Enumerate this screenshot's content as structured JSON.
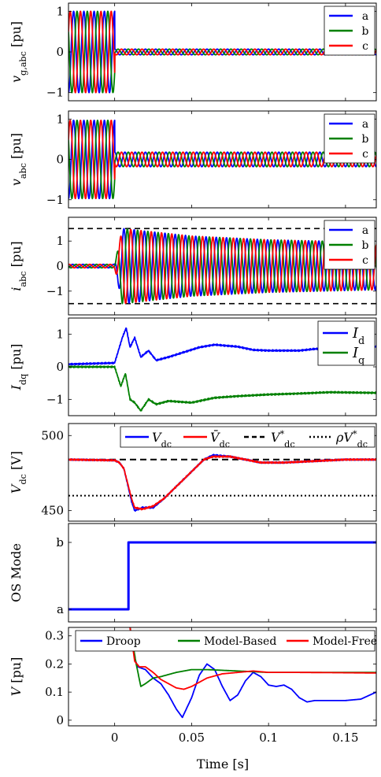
{
  "figure": {
    "xlabel": "Time [s]"
  },
  "colors": {
    "blue": "#0000ff",
    "green": "#008000",
    "red": "#ff0000",
    "black": "#000000"
  },
  "chart_data": [
    {
      "type": "line",
      "ylabel": "v_g,abc [pu]",
      "xlim": [
        -0.03,
        0.17
      ],
      "ylim": [
        -1.2,
        1.2
      ],
      "yticks": [
        -1,
        0,
        1
      ],
      "series": [
        {
          "name": "a",
          "color": "#0000ff",
          "phase": 0
        },
        {
          "name": "b",
          "color": "#008000",
          "phase": -120
        },
        {
          "name": "c",
          "color": "#ff0000",
          "phase": 120
        }
      ],
      "freq_hz": 150,
      "segments": [
        {
          "t_start": -0.03,
          "t_end": 0.0,
          "amplitude": 1.0
        },
        {
          "t_start": 0.0,
          "t_end": 0.17,
          "amplitude": 0.07
        }
      ],
      "legend": "top-right"
    },
    {
      "type": "line",
      "ylabel": "v_abc [pu]",
      "xlim": [
        -0.03,
        0.17
      ],
      "ylim": [
        -1.2,
        1.2
      ],
      "yticks": [
        -1,
        0,
        1
      ],
      "series": [
        {
          "name": "a",
          "color": "#0000ff",
          "phase": 0
        },
        {
          "name": "b",
          "color": "#008000",
          "phase": -120
        },
        {
          "name": "c",
          "color": "#ff0000",
          "phase": 120
        }
      ],
      "freq_hz": 150,
      "segments": [
        {
          "t_start": -0.03,
          "t_end": 0.0,
          "amplitude": 0.97
        },
        {
          "t_start": 0.0,
          "t_end": 0.17,
          "amplitude": 0.18
        }
      ],
      "legend": "top-right"
    },
    {
      "type": "line",
      "ylabel": "i_abc [pu]",
      "xlim": [
        -0.03,
        0.17
      ],
      "ylim": [
        -1.95,
        1.95
      ],
      "yticks": [
        -1,
        0,
        1
      ],
      "limits": [
        1.5,
        -1.5
      ],
      "series": [
        {
          "name": "a",
          "color": "#0000ff",
          "phase": 0
        },
        {
          "name": "b",
          "color": "#008000",
          "phase": -120
        },
        {
          "name": "c",
          "color": "#ff0000",
          "phase": 120
        }
      ],
      "freq_hz": 150,
      "envelope": [
        [
          -0.03,
          0.07
        ],
        [
          0.0,
          0.07
        ],
        [
          0.005,
          1.5
        ],
        [
          0.05,
          1.2
        ],
        [
          0.1,
          1.05
        ],
        [
          0.17,
          0.95
        ]
      ],
      "legend": "top-right"
    },
    {
      "type": "line",
      "ylabel": "I_dq [pu]",
      "xlim": [
        -0.03,
        0.17
      ],
      "ylim": [
        -1.5,
        1.5
      ],
      "yticks": [
        -1,
        0,
        1
      ],
      "series": [
        {
          "name": "I_d",
          "color": "#0000ff",
          "points": [
            [
              -0.03,
              0.08
            ],
            [
              0.0,
              0.12
            ],
            [
              0.005,
              0.9
            ],
            [
              0.0075,
              1.2
            ],
            [
              0.01,
              0.6
            ],
            [
              0.013,
              0.9
            ],
            [
              0.017,
              0.3
            ],
            [
              0.022,
              0.5
            ],
            [
              0.027,
              0.2
            ],
            [
              0.035,
              0.3
            ],
            [
              0.045,
              0.45
            ],
            [
              0.055,
              0.6
            ],
            [
              0.065,
              0.68
            ],
            [
              0.08,
              0.62
            ],
            [
              0.09,
              0.52
            ],
            [
              0.1,
              0.5
            ],
            [
              0.12,
              0.5
            ],
            [
              0.13,
              0.55
            ],
            [
              0.17,
              0.62
            ]
          ]
        },
        {
          "name": "I_q",
          "color": "#008000",
          "points": [
            [
              -0.03,
              0.0
            ],
            [
              0.0,
              0.0
            ],
            [
              0.004,
              -0.6
            ],
            [
              0.007,
              -0.2
            ],
            [
              0.01,
              -1.0
            ],
            [
              0.013,
              -1.1
            ],
            [
              0.017,
              -1.35
            ],
            [
              0.022,
              -1.0
            ],
            [
              0.027,
              -1.15
            ],
            [
              0.035,
              -1.05
            ],
            [
              0.05,
              -1.1
            ],
            [
              0.065,
              -0.95
            ],
            [
              0.08,
              -0.9
            ],
            [
              0.1,
              -0.85
            ],
            [
              0.12,
              -0.82
            ],
            [
              0.14,
              -0.78
            ],
            [
              0.17,
              -0.8
            ]
          ]
        }
      ],
      "legend": "top-right"
    },
    {
      "type": "line",
      "ylabel": "V_dc [V]",
      "xlim": [
        -0.03,
        0.17
      ],
      "ylim": [
        443,
        508
      ],
      "yticks": [
        450,
        500
      ],
      "reference_lines": [
        {
          "name": "V*_dc",
          "value": 484,
          "style": "dashed"
        },
        {
          "name": "ρV*_dc",
          "value": 460,
          "style": "dotted"
        }
      ],
      "series": [
        {
          "name": "V_dc",
          "color": "#0000ff",
          "points": [
            [
              -0.03,
              484
            ],
            [
              0.0,
              483.5
            ],
            [
              0.003,
              482
            ],
            [
              0.006,
              478
            ],
            [
              0.009,
              465
            ],
            [
              0.011,
              456
            ],
            [
              0.013,
              450
            ],
            [
              0.018,
              452
            ],
            [
              0.025,
              452
            ],
            [
              0.032,
              458
            ],
            [
              0.04,
              466
            ],
            [
              0.05,
              476
            ],
            [
              0.058,
              484
            ],
            [
              0.064,
              487
            ],
            [
              0.075,
              486
            ],
            [
              0.085,
              484
            ],
            [
              0.095,
              482
            ],
            [
              0.11,
              482
            ],
            [
              0.13,
              483
            ],
            [
              0.15,
              484
            ],
            [
              0.17,
              484
            ]
          ]
        },
        {
          "name": "V̄_dc",
          "color": "#ff0000",
          "points": [
            [
              -0.03,
              484
            ],
            [
              0.0,
              483.5
            ],
            [
              0.003,
              482
            ],
            [
              0.006,
              478
            ],
            [
              0.009,
              466
            ],
            [
              0.011,
              458
            ],
            [
              0.013,
              452
            ],
            [
              0.018,
              451
            ],
            [
              0.025,
              453
            ],
            [
              0.032,
              458
            ],
            [
              0.04,
              466
            ],
            [
              0.05,
              476
            ],
            [
              0.058,
              484
            ],
            [
              0.064,
              486
            ],
            [
              0.075,
              486
            ],
            [
              0.085,
              484
            ],
            [
              0.095,
              482
            ],
            [
              0.11,
              482
            ],
            [
              0.13,
              483
            ],
            [
              0.15,
              484
            ],
            [
              0.17,
              484
            ]
          ]
        }
      ],
      "legend_entries": [
        "V_dc",
        "V̄_dc",
        "V*_dc",
        "ρV*_dc"
      ],
      "legend": "top-right"
    },
    {
      "type": "line",
      "ylabel": "OS Mode",
      "xlim": [
        -0.03,
        0.17
      ],
      "categories": [
        "a",
        "b"
      ],
      "series": [
        {
          "name": "mode",
          "color": "#0000ff",
          "points": [
            [
              -0.03,
              "a"
            ],
            [
              0.009,
              "a"
            ],
            [
              0.009,
              "b"
            ],
            [
              0.17,
              "b"
            ]
          ]
        }
      ]
    },
    {
      "type": "line",
      "ylabel": "V [pu]",
      "xlim": [
        -0.03,
        0.17
      ],
      "ylim": [
        -0.02,
        0.33
      ],
      "yticks": [
        0,
        0.1,
        0.2,
        0.3
      ],
      "xticks": [
        0,
        0.05,
        0.1,
        0.15
      ],
      "series": [
        {
          "name": "Droop",
          "color": "#0000ff",
          "points": [
            [
              0.01,
              0.33
            ],
            [
              0.013,
              0.22
            ],
            [
              0.015,
              0.19
            ],
            [
              0.02,
              0.18
            ],
            [
              0.025,
              0.15
            ],
            [
              0.03,
              0.13
            ],
            [
              0.035,
              0.09
            ],
            [
              0.04,
              0.04
            ],
            [
              0.044,
              0.01
            ],
            [
              0.05,
              0.08
            ],
            [
              0.055,
              0.16
            ],
            [
              0.06,
              0.2
            ],
            [
              0.065,
              0.18
            ],
            [
              0.07,
              0.12
            ],
            [
              0.075,
              0.07
            ],
            [
              0.08,
              0.09
            ],
            [
              0.085,
              0.14
            ],
            [
              0.09,
              0.17
            ],
            [
              0.095,
              0.155
            ],
            [
              0.1,
              0.125
            ],
            [
              0.105,
              0.12
            ],
            [
              0.11,
              0.125
            ],
            [
              0.115,
              0.11
            ],
            [
              0.12,
              0.08
            ],
            [
              0.125,
              0.065
            ],
            [
              0.13,
              0.07
            ],
            [
              0.14,
              0.07
            ],
            [
              0.15,
              0.07
            ],
            [
              0.16,
              0.075
            ],
            [
              0.17,
              0.1
            ]
          ]
        },
        {
          "name": "Model-Based",
          "color": "#008000",
          "points": [
            [
              0.01,
              0.33
            ],
            [
              0.014,
              0.2
            ],
            [
              0.017,
              0.12
            ],
            [
              0.02,
              0.13
            ],
            [
              0.025,
              0.15
            ],
            [
              0.03,
              0.155
            ],
            [
              0.04,
              0.17
            ],
            [
              0.05,
              0.18
            ],
            [
              0.06,
              0.18
            ],
            [
              0.08,
              0.175
            ],
            [
              0.1,
              0.17
            ],
            [
              0.17,
              0.17
            ]
          ]
        },
        {
          "name": "Model-Free",
          "color": "#ff0000",
          "points": [
            [
              0.01,
              0.33
            ],
            [
              0.013,
              0.21
            ],
            [
              0.016,
              0.19
            ],
            [
              0.02,
              0.19
            ],
            [
              0.025,
              0.17
            ],
            [
              0.03,
              0.145
            ],
            [
              0.035,
              0.13
            ],
            [
              0.04,
              0.115
            ],
            [
              0.045,
              0.11
            ],
            [
              0.05,
              0.12
            ],
            [
              0.06,
              0.15
            ],
            [
              0.07,
              0.165
            ],
            [
              0.08,
              0.17
            ],
            [
              0.09,
              0.175
            ],
            [
              0.1,
              0.17
            ],
            [
              0.12,
              0.17
            ],
            [
              0.17,
              0.168
            ]
          ]
        }
      ],
      "legend": "top-right"
    }
  ]
}
